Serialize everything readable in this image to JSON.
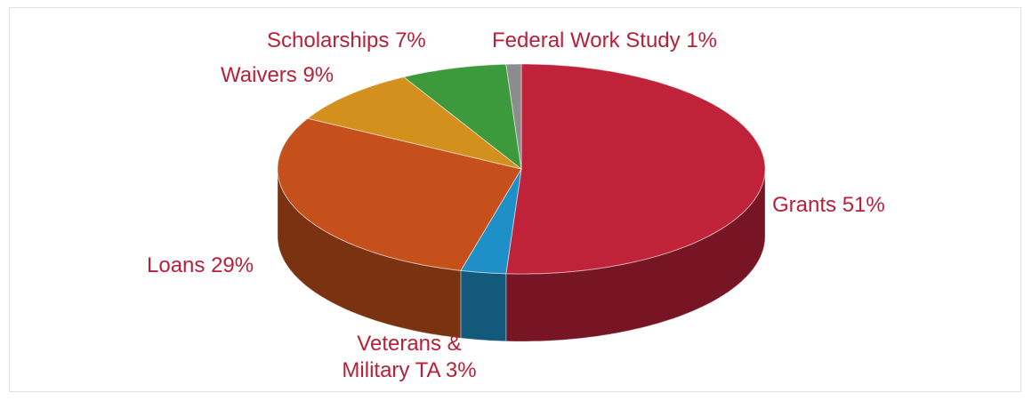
{
  "chart_data": {
    "type": "pie3d",
    "categories": [
      "Grants",
      "Veterans & Military TA",
      "Loans",
      "Waivers",
      "Scholarships",
      "Federal Work Study"
    ],
    "values": [
      51,
      3,
      29,
      9,
      7,
      1
    ],
    "value_labels": [
      "51%",
      "3%",
      "29%",
      "9%",
      "7%",
      "1%"
    ],
    "colors": [
      "#c0223a",
      "#1f8fc8",
      "#c5501c",
      "#d4901c",
      "#3c9a3c",
      "#8c8c8c"
    ]
  }
}
